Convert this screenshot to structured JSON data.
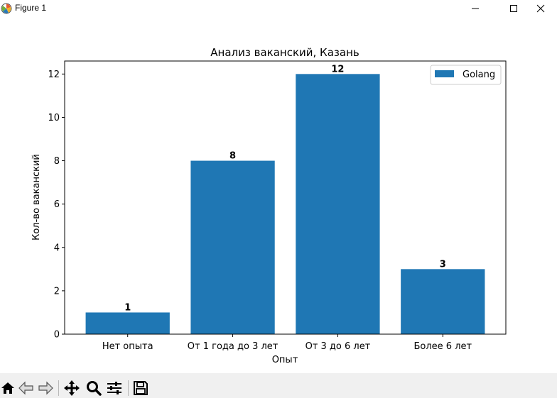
{
  "window": {
    "title": "Figure 1"
  },
  "chart_data": {
    "type": "bar",
    "title": "Анализ ваканский, Казань",
    "xlabel": "Опыт",
    "ylabel": "Кол-во ваканский",
    "categories": [
      "Нет опыта",
      "От 1 года до 3 лет",
      "От 3 до 6 лет",
      "Более 6 лет"
    ],
    "series": [
      {
        "name": "Golang",
        "values": [
          1,
          8,
          12,
          3
        ],
        "color": "#1f77b4"
      }
    ],
    "data_labels": [
      "1",
      "8",
      "12",
      "3"
    ],
    "yticks": [
      0,
      2,
      4,
      6,
      8,
      10,
      12
    ],
    "ylim": [
      0,
      12.6
    ],
    "legend": "top-right",
    "grid": false
  },
  "toolbar": {
    "icons": [
      "home-icon",
      "back-arrow-icon",
      "forward-arrow-icon",
      "move-icon",
      "zoom-icon",
      "configure-subplots-icon",
      "save-icon"
    ]
  }
}
